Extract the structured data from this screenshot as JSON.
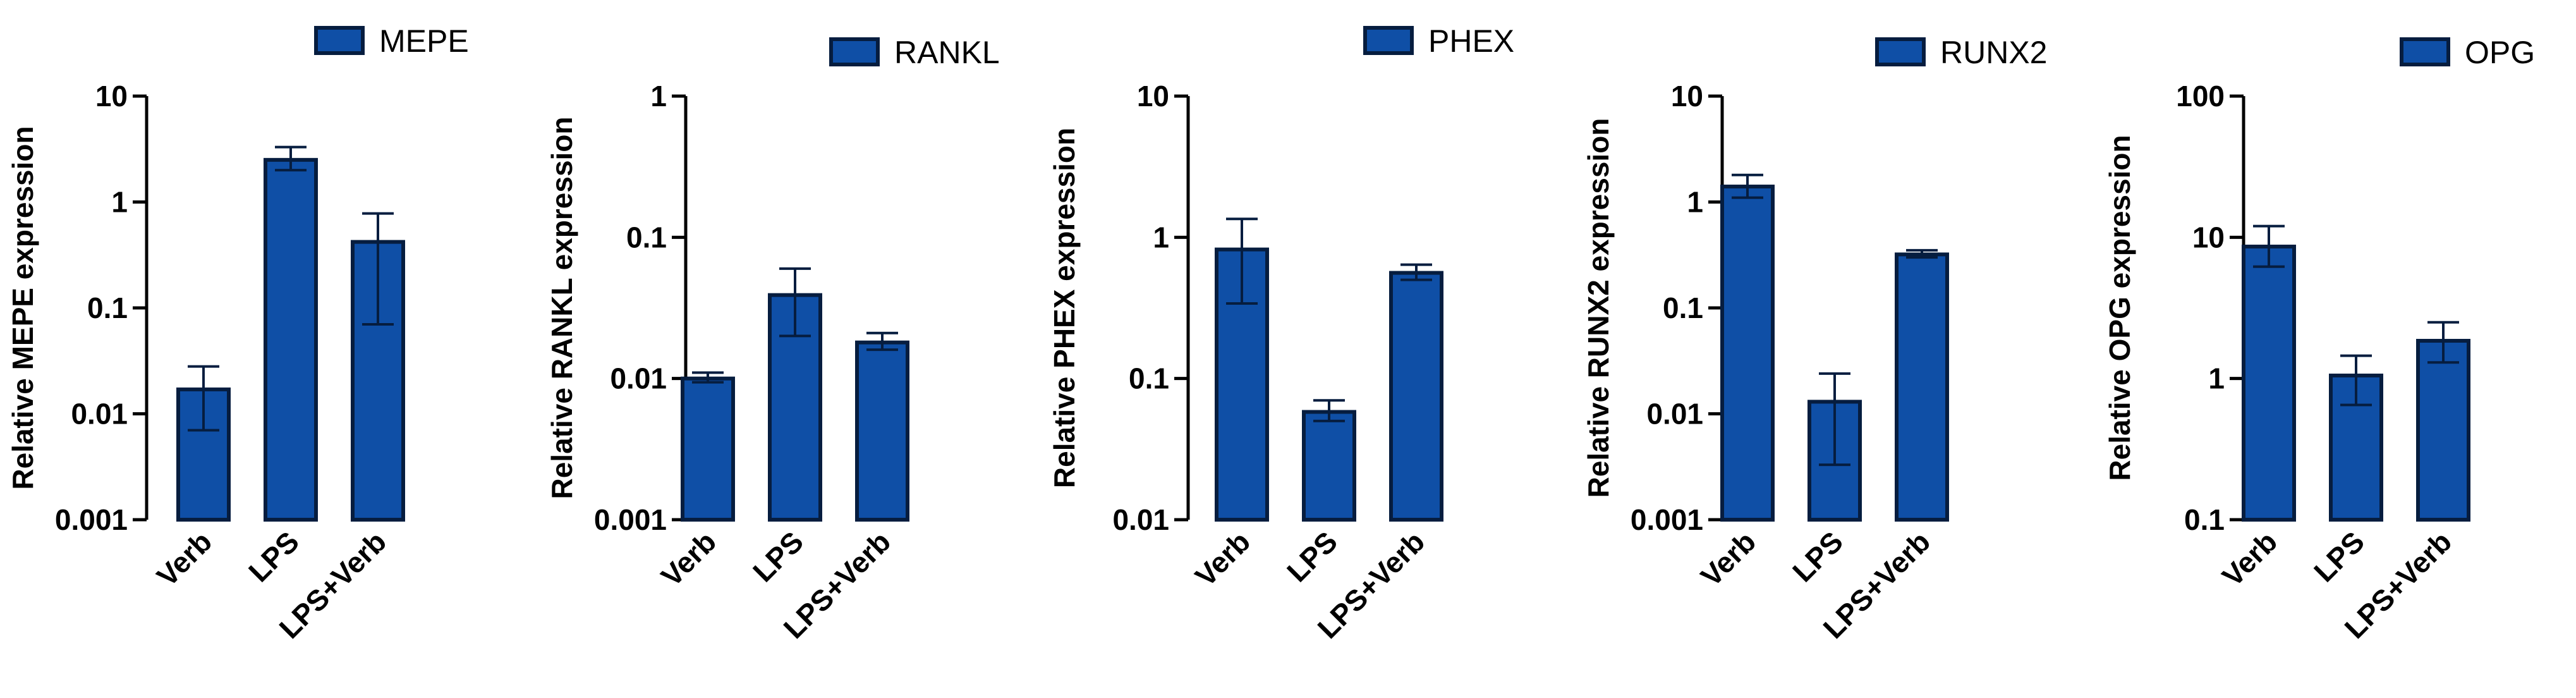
{
  "colors": {
    "bar_fill": "#0f4fa6",
    "bar_stroke": "#061d3f",
    "axis": "#000000"
  },
  "chart_data": [
    {
      "type": "bar",
      "legend": "MEPE",
      "ylabel": "Relative MEPE expression",
      "yscale": "log",
      "ylim": [
        0.001,
        10
      ],
      "yticks": [
        "0.001",
        "0.01",
        "0.1",
        "1",
        "10"
      ],
      "categories": [
        "Verb",
        "LPS",
        "LPS+Verb"
      ],
      "values": [
        0.017,
        2.5,
        0.42
      ],
      "err_low": [
        0.007,
        2.0,
        0.07
      ],
      "err_high": [
        0.028,
        3.3,
        0.78
      ]
    },
    {
      "type": "bar",
      "legend": "RANKL",
      "ylabel": "Relative RANKL expression",
      "yscale": "log",
      "ylim": [
        0.001,
        1
      ],
      "yticks": [
        "0.001",
        "0.01",
        "0.1",
        "1"
      ],
      "categories": [
        "Verb",
        "LPS",
        "LPS+Verb"
      ],
      "values": [
        0.01,
        0.039,
        0.018
      ],
      "err_low": [
        0.0094,
        0.02,
        0.016
      ],
      "err_high": [
        0.011,
        0.06,
        0.021
      ]
    },
    {
      "type": "bar",
      "legend": "PHEX",
      "ylabel": "Relative PHEX expression",
      "yscale": "log",
      "ylim": [
        0.01,
        10
      ],
      "yticks": [
        "0.01",
        "0.1",
        "1",
        "10"
      ],
      "categories": [
        "Verb",
        "LPS",
        "LPS+Verb"
      ],
      "values": [
        0.82,
        0.058,
        0.56
      ],
      "err_low": [
        0.34,
        0.05,
        0.5
      ],
      "err_high": [
        1.35,
        0.07,
        0.64
      ]
    },
    {
      "type": "bar",
      "legend": "RUNX2",
      "ylabel": "Relative RUNX2 expression",
      "yscale": "log",
      "ylim": [
        0.001,
        10
      ],
      "yticks": [
        "0.001",
        "0.01",
        "0.1",
        "1",
        "10"
      ],
      "categories": [
        "Verb",
        "LPS",
        "LPS+Verb"
      ],
      "values": [
        1.4,
        0.013,
        0.32
      ],
      "err_low": [
        1.1,
        0.0033,
        0.3
      ],
      "err_high": [
        1.8,
        0.024,
        0.35
      ]
    },
    {
      "type": "bar",
      "legend": "OPG",
      "ylabel": "Relative OPG expression",
      "yscale": "log",
      "ylim": [
        0.1,
        100
      ],
      "yticks": [
        "0.1",
        "1",
        "10",
        "100"
      ],
      "categories": [
        "Verb",
        "LPS",
        "LPS+Verb"
      ],
      "values": [
        8.6,
        1.05,
        1.85
      ],
      "err_low": [
        6.2,
        0.65,
        1.3
      ],
      "err_high": [
        12,
        1.45,
        2.5
      ]
    }
  ]
}
